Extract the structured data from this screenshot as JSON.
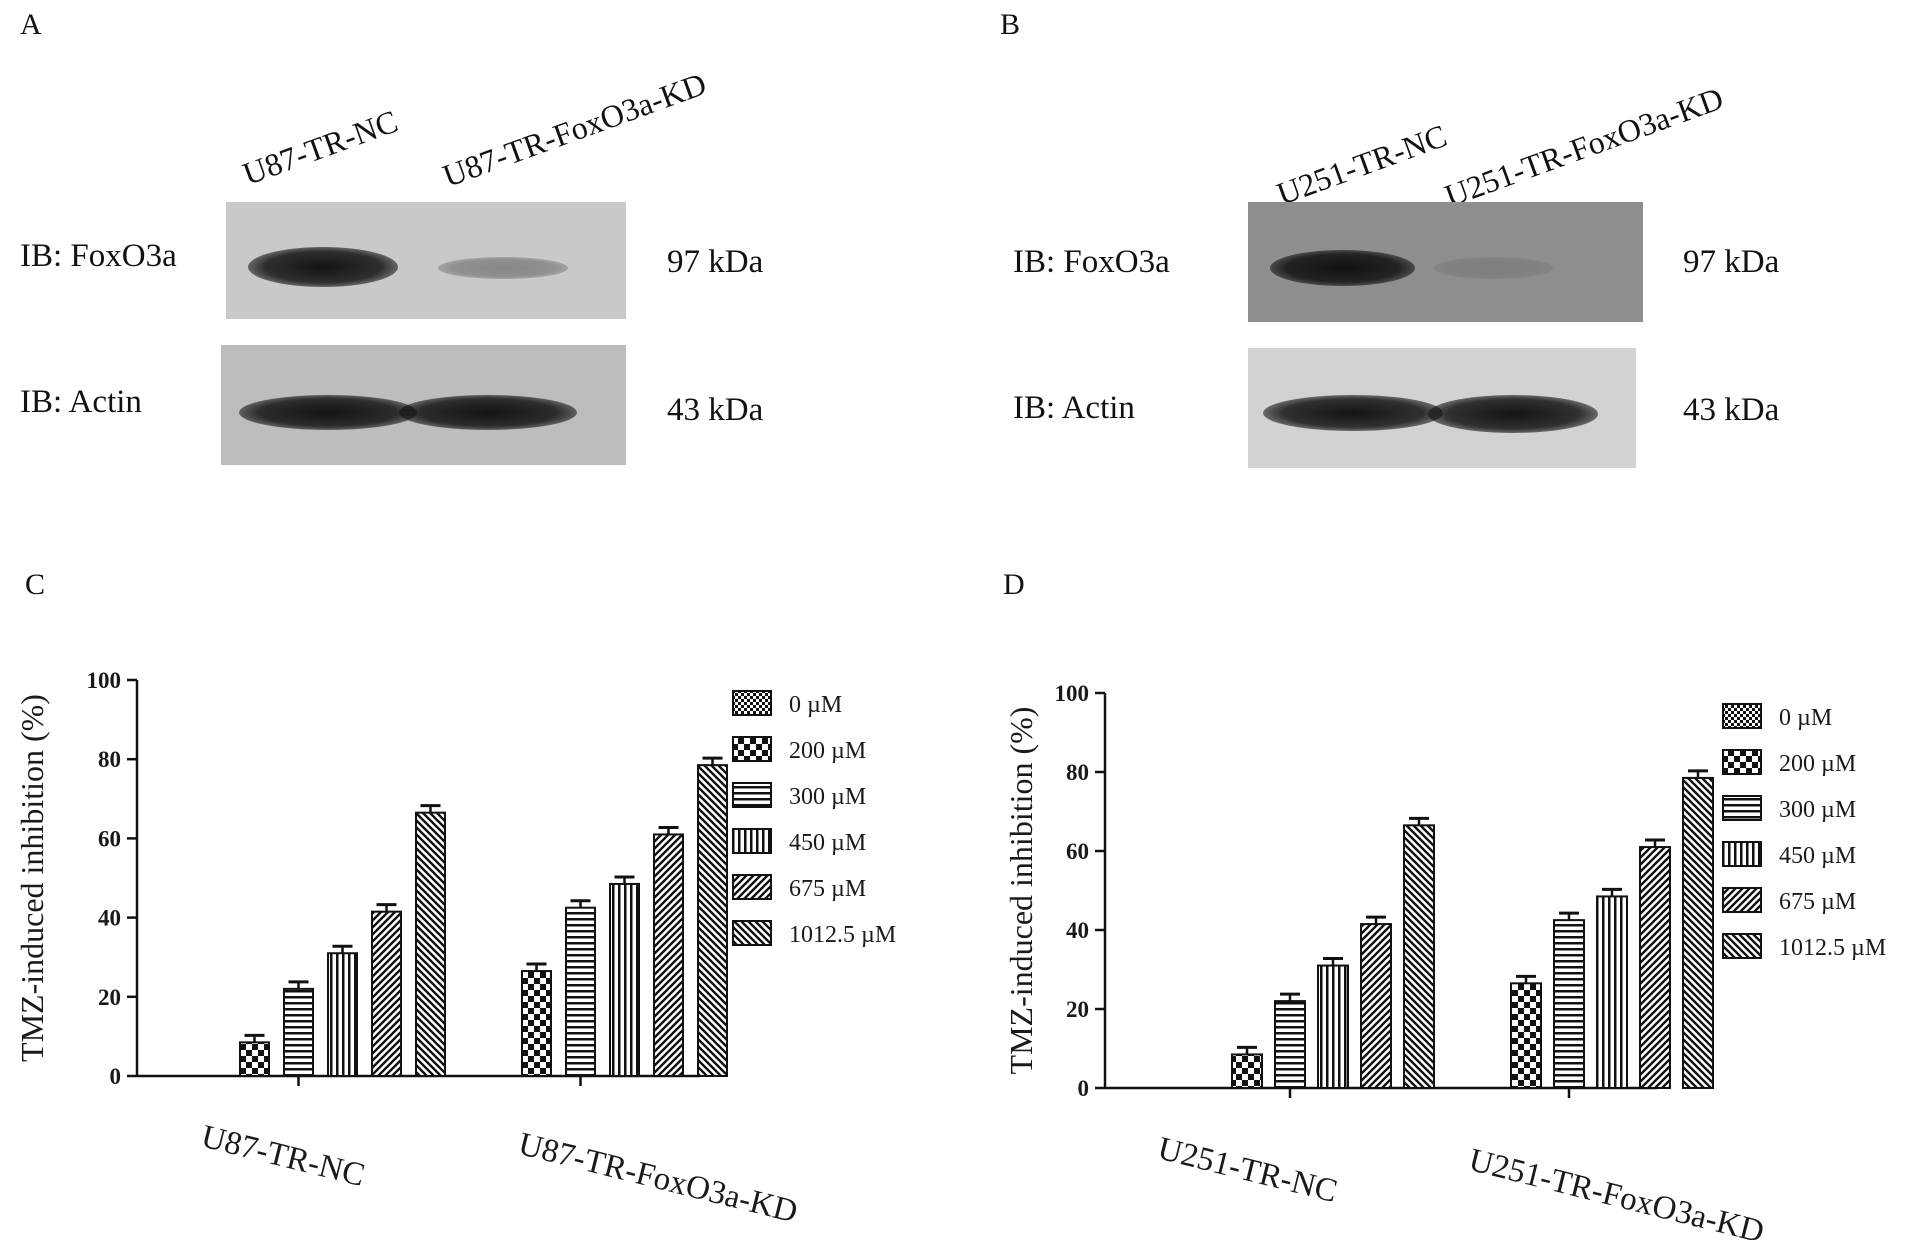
{
  "panels": {
    "A": {
      "letter": "A",
      "lanes": [
        "U87-TR-NC",
        "U87-TR-FoxO3a-KD"
      ],
      "blots": [
        {
          "label": "IB: FoxO3a",
          "size": "97 kDa",
          "intensity": [
            0.95,
            0.35
          ]
        },
        {
          "label": "IB: Actin",
          "size": "43 kDa",
          "intensity": [
            0.95,
            0.95
          ]
        }
      ]
    },
    "B": {
      "letter": "B",
      "lanes": [
        "U251-TR-NC",
        "U251-TR-FoxO3a-KD"
      ],
      "blots": [
        {
          "label": "IB: FoxO3a",
          "size": "97 kDa",
          "intensity": [
            0.95,
            0.12
          ]
        },
        {
          "label": "IB: Actin",
          "size": "43 kDa",
          "intensity": [
            0.95,
            0.95
          ]
        }
      ]
    },
    "C": {
      "letter": "C"
    },
    "D": {
      "letter": "D"
    }
  },
  "chart_data": [
    {
      "panel": "C",
      "type": "bar",
      "ylabel": "TMZ-induced inhibition    (%)",
      "ylim": [
        0,
        100
      ],
      "yticks": [
        "0",
        "20",
        "40",
        "60",
        "80",
        "100"
      ],
      "categories": [
        "U87-TR-NC",
        "U87-TR-FoxO3a-KD"
      ],
      "legend_position": "right",
      "series": [
        {
          "name": "0 µM",
          "values": [
            0,
            0
          ],
          "pattern": "checker-fine"
        },
        {
          "name": "200 µM",
          "values": [
            8.5,
            26.5
          ],
          "pattern": "checker-coarse"
        },
        {
          "name": "300 µM",
          "values": [
            22,
            42.5
          ],
          "pattern": "horizontal"
        },
        {
          "name": "450 µM",
          "values": [
            31,
            48.5
          ],
          "pattern": "vertical"
        },
        {
          "name": "675 µM",
          "values": [
            41.5,
            61
          ],
          "pattern": "diag-right"
        },
        {
          "name": "1012.5 µM",
          "values": [
            66.5,
            78.5
          ],
          "pattern": "diag-left"
        }
      ]
    },
    {
      "panel": "D",
      "type": "bar",
      "ylabel": "TMZ-induced inhibition    (%)",
      "ylim": [
        0,
        100
      ],
      "yticks": [
        "0",
        "20",
        "40",
        "60",
        "80",
        "100"
      ],
      "categories": [
        "U251-TR-NC",
        "U251-TR-FoxO3a-KD"
      ],
      "legend_position": "right",
      "series": [
        {
          "name": "0 µM",
          "values": [
            0,
            0
          ],
          "pattern": "checker-fine"
        },
        {
          "name": "200 µM",
          "values": [
            8.5,
            26.5
          ],
          "pattern": "checker-coarse"
        },
        {
          "name": "300 µM",
          "values": [
            22,
            42.5
          ],
          "pattern": "horizontal"
        },
        {
          "name": "450 µM",
          "values": [
            31,
            48.5
          ],
          "pattern": "vertical"
        },
        {
          "name": "675 µM",
          "values": [
            41.5,
            61
          ],
          "pattern": "diag-right"
        },
        {
          "name": "1012.5 µM",
          "values": [
            66.5,
            78.5
          ],
          "pattern": "diag-left"
        }
      ]
    }
  ]
}
